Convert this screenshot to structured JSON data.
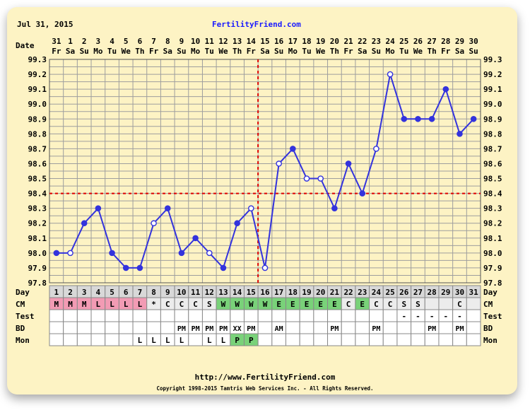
{
  "header": {
    "date_text": "Jul 31, 2015",
    "site_name": "FertilityFriend.com",
    "date_label": "Date"
  },
  "footer": {
    "url": "http://www.FertilityFriend.com",
    "copyright": "Copyright 1998-2015 Tamtris Web Services Inc. - All Rights Reserved."
  },
  "colors": {
    "line": "#3333dd",
    "grid": "#9e9e9e",
    "reference_lines": "#dd0000",
    "cm_pink": "#f29bb4",
    "cm_green": "#79d279",
    "card": "#fdf3c4"
  },
  "chart_data": {
    "type": "line",
    "dates": [
      "31",
      "1",
      "2",
      "3",
      "4",
      "5",
      "6",
      "7",
      "8",
      "9",
      "10",
      "11",
      "12",
      "13",
      "14",
      "15",
      "16",
      "17",
      "18",
      "19",
      "20",
      "21",
      "22",
      "23",
      "24",
      "25",
      "26",
      "27",
      "28",
      "29",
      "30"
    ],
    "weekdays": [
      "Fr",
      "Sa",
      "Su",
      "Mo",
      "Tu",
      "We",
      "Th",
      "Fr",
      "Sa",
      "Su",
      "Mo",
      "Tu",
      "We",
      "Th",
      "Fr",
      "Sa",
      "Su",
      "Mo",
      "Tu",
      "We",
      "Th",
      "Fr",
      "Sa",
      "Su",
      "Mo",
      "Tu",
      "We",
      "Th",
      "Fr",
      "Sa",
      "Su"
    ],
    "y_ticks": [
      "99.3",
      "99.2",
      "99.1",
      "99.0",
      "98.9",
      "98.8",
      "98.7",
      "98.6",
      "98.5",
      "98.4",
      "98.3",
      "98.2",
      "98.1",
      "98.0",
      "97.9",
      "97.8"
    ],
    "ylim": [
      97.8,
      99.3
    ],
    "grid": true,
    "series": [
      {
        "days": [
          1,
          2,
          3,
          4,
          5,
          6,
          7,
          8,
          9,
          10,
          11,
          12,
          13,
          14,
          15,
          16,
          17,
          18,
          19,
          20,
          21,
          22,
          23,
          24,
          25,
          26,
          27,
          28,
          29,
          30,
          31
        ],
        "values": [
          98.0,
          98.0,
          98.2,
          98.3,
          98.0,
          97.9,
          97.9,
          98.2,
          98.3,
          98.0,
          98.1,
          98.0,
          97.9,
          98.2,
          98.3,
          97.9,
          98.6,
          98.7,
          98.5,
          98.5,
          98.3,
          98.6,
          98.4,
          98.7,
          99.2,
          98.9,
          98.9,
          98.9,
          99.1,
          98.8,
          98.9
        ],
        "open_points": [
          false,
          true,
          false,
          false,
          false,
          false,
          false,
          true,
          false,
          false,
          false,
          true,
          false,
          false,
          true,
          true,
          true,
          false,
          true,
          true,
          false,
          false,
          false,
          true,
          true,
          false,
          false,
          false,
          false,
          false,
          false
        ]
      }
    ],
    "coverline": 98.4,
    "ovulation_line_after_day": 15,
    "rows": {
      "day": {
        "label": "Day",
        "values": [
          "1",
          "2",
          "3",
          "4",
          "5",
          "6",
          "7",
          "8",
          "9",
          "10",
          "11",
          "12",
          "13",
          "14",
          "15",
          "16",
          "17",
          "18",
          "19",
          "20",
          "21",
          "22",
          "23",
          "24",
          "25",
          "26",
          "27",
          "28",
          "29",
          "30",
          "31"
        ]
      },
      "cm": {
        "label": "CM",
        "values": [
          "M",
          "M",
          "M",
          "L",
          "L",
          "L",
          "L",
          "*",
          "C",
          "C",
          "C",
          "S",
          "W",
          "W",
          "W",
          "W",
          "E",
          "E",
          "E",
          "E",
          "E",
          "C",
          "E",
          "C",
          "C",
          "S",
          "S",
          "",
          "",
          "C",
          ""
        ],
        "tints": [
          "pink",
          "pink",
          "pink",
          "pink",
          "pink",
          "pink",
          "pink",
          "",
          "",
          "",
          "",
          "",
          "green",
          "green",
          "green",
          "green",
          "green",
          "green",
          "green",
          "green",
          "green",
          "",
          "green",
          "",
          "",
          "",
          "",
          "",
          "",
          "",
          ""
        ]
      },
      "test": {
        "label": "Test",
        "values": [
          "",
          "",
          "",
          "",
          "",
          "",
          "",
          "",
          "",
          "",
          "",
          "",
          "",
          "",
          "",
          "",
          "",
          "",
          "",
          "",
          "",
          "",
          "",
          "",
          "",
          "-",
          "-",
          "-",
          "-",
          "-",
          ""
        ]
      },
      "bd": {
        "label": "BD",
        "values": [
          "",
          "",
          "",
          "",
          "",
          "",
          "",
          "",
          "",
          "PM",
          "PM",
          "PM",
          "PM",
          "XX",
          "PM",
          "",
          "AM",
          "",
          "",
          "",
          "PM",
          "",
          "",
          "PM",
          "",
          "",
          "",
          "PM",
          "",
          "PM",
          ""
        ]
      },
      "mon": {
        "label": "Mon",
        "values": [
          "",
          "",
          "",
          "",
          "",
          "",
          "L",
          "L",
          "L",
          "L",
          "",
          "L",
          "L",
          "P",
          "P",
          "",
          "",
          "",
          "",
          "",
          "",
          "",
          "",
          "",
          "",
          "",
          "",
          "",
          "",
          "",
          ""
        ],
        "tints": [
          "",
          "",
          "",
          "",
          "",
          "",
          "",
          "",
          "",
          "",
          "",
          "",
          "",
          "green",
          "green",
          "",
          "",
          "",
          "",
          "",
          "",
          "",
          "",
          "",
          "",
          "",
          "",
          "",
          "",
          "",
          ""
        ]
      }
    }
  }
}
